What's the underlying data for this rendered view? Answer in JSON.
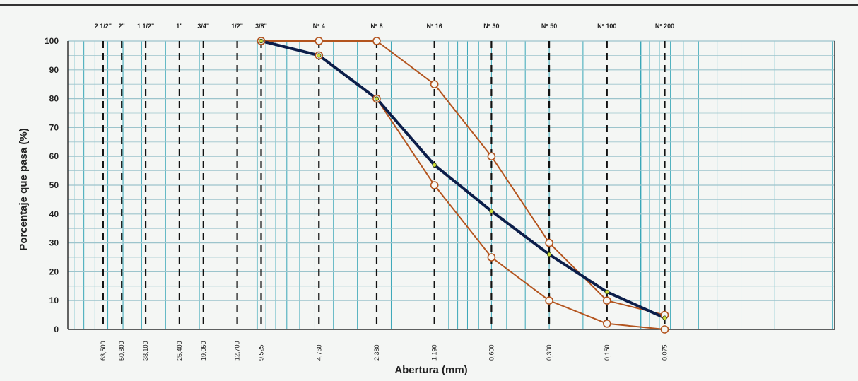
{
  "chart_data": {
    "type": "line",
    "xlabel": "Abertura (mm)",
    "ylabel": "Porcentaje que pasa (%)",
    "x_scale": "log",
    "x_reversed": true,
    "ylim": [
      0,
      100
    ],
    "y_ticks": [
      0,
      10,
      20,
      30,
      40,
      50,
      60,
      70,
      80,
      90,
      100
    ],
    "sieves": [
      {
        "name": "2 1/2\"",
        "opening": "63,500",
        "mm": 63.5
      },
      {
        "name": "2\"",
        "opening": "50,800",
        "mm": 50.8
      },
      {
        "name": "1 1/2\"",
        "opening": "38,100",
        "mm": 38.1
      },
      {
        "name": "1\"",
        "opening": "25,400",
        "mm": 25.4
      },
      {
        "name": "3/4\"",
        "opening": "19,050",
        "mm": 19.05
      },
      {
        "name": "1/2\"",
        "opening": "12,700",
        "mm": 12.7
      },
      {
        "name": "3/8\"",
        "opening": "9,525",
        "mm": 9.525
      },
      {
        "name": "Nº 4",
        "opening": "4,760",
        "mm": 4.76
      },
      {
        "name": "Nº 8",
        "opening": "2,380",
        "mm": 2.38
      },
      {
        "name": "Nº 16",
        "opening": "1,190",
        "mm": 1.19
      },
      {
        "name": "Nº 30",
        "opening": "0,600",
        "mm": 0.6
      },
      {
        "name": "Nº 50",
        "opening": "0,300",
        "mm": 0.3
      },
      {
        "name": "Nº 100",
        "opening": "0,150",
        "mm": 0.15
      },
      {
        "name": "Nº 200",
        "opening": "0,075",
        "mm": 0.075
      }
    ],
    "series": [
      {
        "role": "upper-limit",
        "color": "#b3541e",
        "marker": "circle",
        "points": [
          [
            9.525,
            100
          ],
          [
            4.76,
            100
          ],
          [
            2.38,
            100
          ],
          [
            1.19,
            85
          ],
          [
            0.6,
            60
          ],
          [
            0.3,
            30
          ],
          [
            0.15,
            10
          ],
          [
            0.075,
            5
          ]
        ]
      },
      {
        "role": "lower-limit",
        "color": "#b3541e",
        "marker": "circle",
        "points": [
          [
            9.525,
            100
          ],
          [
            4.76,
            95
          ],
          [
            2.38,
            80
          ],
          [
            1.19,
            50
          ],
          [
            0.6,
            25
          ],
          [
            0.3,
            10
          ],
          [
            0.15,
            2
          ],
          [
            0.075,
            0
          ]
        ]
      },
      {
        "role": "sample",
        "color": "#0c1e4a",
        "marker": "dot",
        "points": [
          [
            9.525,
            100
          ],
          [
            4.76,
            95
          ],
          [
            2.38,
            80
          ],
          [
            1.19,
            57
          ],
          [
            0.6,
            41
          ],
          [
            0.3,
            26
          ],
          [
            0.15,
            13
          ],
          [
            0.075,
            4
          ]
        ]
      }
    ],
    "grid": true,
    "colors": {
      "vertical_grid": "#3aa7b8",
      "horizontal_grid": "#9cc4cc",
      "sieve_line": "#111111",
      "dot_fill": "#cddc39"
    }
  }
}
